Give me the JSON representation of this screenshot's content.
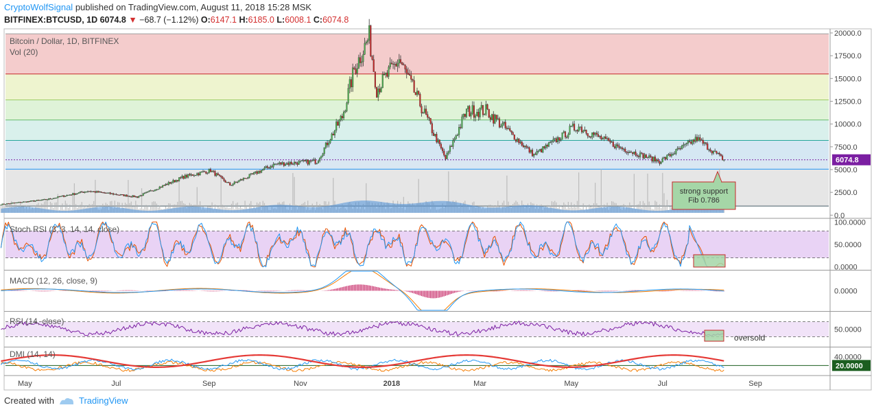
{
  "header": {
    "author": "CryptoWolfSignal",
    "published": "published on TradingView.com, August 11, 2018 15:28 MSK",
    "symbol": "BITFINEX:BTCUSD, 1D",
    "last": "6074.8",
    "change": "−68.7 (−1.12%)",
    "open_label": "O:",
    "open": "6147.1",
    "high_label": "H:",
    "high": "6185.0",
    "low_label": "L:",
    "low": "6008.1",
    "close_label": "C:",
    "close": "6074.8"
  },
  "footer": {
    "created_with": "Created with",
    "brand": "TradingView"
  },
  "colors": {
    "up": "#4caf50",
    "down": "#c62828",
    "stoch_k": "#2196f3",
    "stoch_d": "#e65100",
    "rsi": "#7b1fa2",
    "macd": "#2196f3",
    "signal": "#f57c00",
    "hist": "#c2185b",
    "dmi_plus": "#2196f3",
    "dmi_minus": "#f57c00",
    "adx": "#e53935",
    "volume": "#4a90d9"
  },
  "chart_data": {
    "type": "line",
    "title": "Bitcoin / Dollar, 1D, BITFINEX",
    "time_axis": {
      "labels": [
        "May",
        "Jul",
        "Sep",
        "Nov",
        "2018",
        "Mar",
        "May",
        "Jul",
        "Sep"
      ]
    },
    "price": {
      "ylim": [
        0,
        20000
      ],
      "ticks": [
        "20000.0",
        "17500.0",
        "15000.0",
        "12500.0",
        "10000.0",
        "7500.0",
        "5000.0",
        "2500.0",
        "0.0"
      ],
      "last_price": "6074.8",
      "dates": [
        "2017-04-15",
        "2017-05-15",
        "2017-06-12",
        "2017-07-15",
        "2017-08-15",
        "2017-09-02",
        "2017-09-15",
        "2017-10-15",
        "2017-11-12",
        "2017-11-29",
        "2017-12-07",
        "2017-12-17",
        "2017-12-22",
        "2018-01-06",
        "2018-02-06",
        "2018-02-20",
        "2018-03-05",
        "2018-04-06",
        "2018-05-05",
        "2018-06-01",
        "2018-06-29",
        "2018-07-24",
        "2018-08-11"
      ],
      "close": [
        1180,
        1700,
        2650,
        2000,
        4200,
        4900,
        3300,
        5600,
        5900,
        10800,
        16000,
        19600,
        13800,
        17100,
        6200,
        11400,
        11500,
        6600,
        9800,
        7500,
        5900,
        8400,
        6074.8
      ],
      "fib_levels": [
        19900,
        15500,
        12650,
        10450,
        8200,
        6074.8,
        5050,
        1000
      ],
      "annotation": {
        "line1": "strong support",
        "line2": "Fib 0.786"
      }
    },
    "volume": {
      "label": "Vol (20)"
    },
    "stoch_rsi": {
      "label": "Stoch RSI (3, 3, 14, 14, close)",
      "ticks": [
        "100.0000",
        "50.0000",
        "0.0000"
      ],
      "levels": [
        80,
        20
      ]
    },
    "macd": {
      "label": "MACD (12, 26, close, 9)",
      "ticks": [
        "0.0000"
      ]
    },
    "rsi": {
      "label": "RSI (14, close)",
      "ticks": [
        "50.0000"
      ],
      "levels": [
        70,
        30
      ],
      "annotation": "oversold"
    },
    "dmi": {
      "label": "DMI (14, 14)",
      "ticks": [
        "40.0000",
        "20.0000"
      ],
      "level": "20.0000"
    }
  }
}
